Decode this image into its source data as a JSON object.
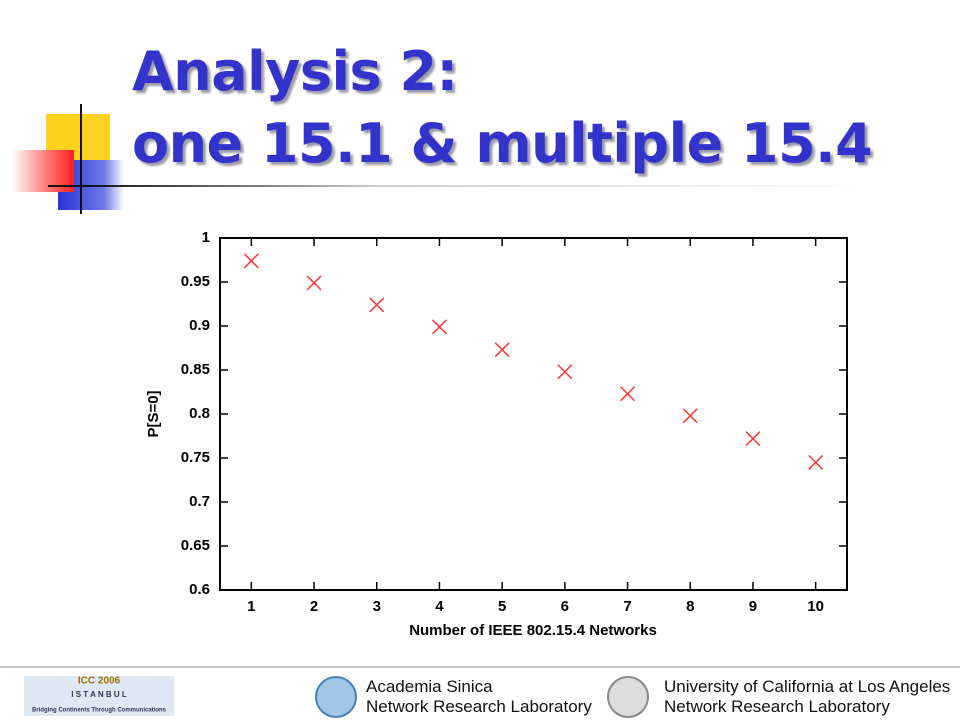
{
  "chart_data": {
    "type": "scatter",
    "title": [
      "Analysis 2:",
      "one 15.1 & multiple 15.4"
    ],
    "xlabel": "Number of IEEE 802.15.4 Networks",
    "ylabel": "P[S=0]",
    "x": [
      1,
      2,
      3,
      4,
      5,
      6,
      7,
      8,
      9,
      10
    ],
    "values": [
      0.974,
      0.949,
      0.924,
      0.899,
      0.873,
      0.848,
      0.823,
      0.798,
      0.772,
      0.745
    ],
    "color": "#ff3030",
    "marker": "x",
    "xlim": [
      0.5,
      10.5
    ],
    "xticks": [
      1,
      2,
      3,
      4,
      5,
      6,
      7,
      8,
      9,
      10
    ],
    "ylim": [
      0.6,
      1
    ],
    "yticks": [
      0.6,
      0.65,
      0.7,
      0.75,
      0.8,
      0.85,
      0.9,
      0.95,
      1
    ],
    "grid": false
  },
  "footer": {
    "icc": [
      "ICC 2006",
      "I S T A N B U L",
      "Bridging Continents Through Communications"
    ],
    "left": [
      "Academia Sinica",
      "Network Research Laboratory"
    ],
    "right": [
      "University of California at Los Angeles",
      "Network Research Laboratory"
    ]
  }
}
